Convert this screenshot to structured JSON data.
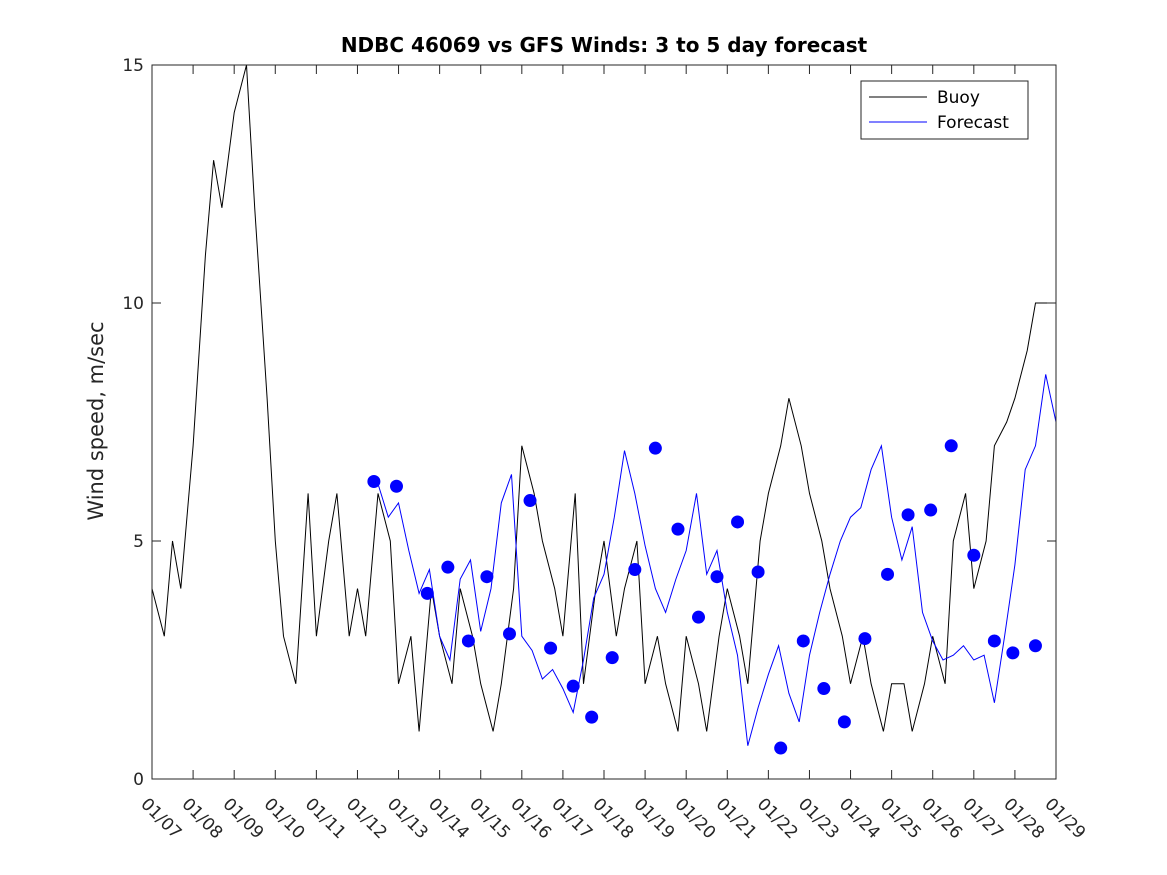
{
  "chart_data": {
    "type": "line",
    "title": "NDBC 46069 vs GFS Winds: 3 to 5 day forecast",
    "xlabel": "",
    "ylabel": "Wind speed, m/sec",
    "xlim": [
      0,
      22
    ],
    "ylim": [
      0,
      15
    ],
    "yticks": [
      0,
      5,
      10,
      15
    ],
    "ytick_labels": [
      "0",
      "5",
      "10",
      "15"
    ],
    "xtick_labels": [
      "01/07",
      "01/08",
      "01/09",
      "01/10",
      "01/11",
      "01/12",
      "01/13",
      "01/14",
      "01/15",
      "01/16",
      "01/17",
      "01/18",
      "01/19",
      "01/20",
      "01/21",
      "01/22",
      "01/23",
      "01/24",
      "01/25",
      "01/26",
      "01/27",
      "01/28",
      "01/29"
    ],
    "legend": {
      "position": "top-right",
      "entries": [
        "Buoy",
        "Forecast"
      ]
    },
    "colors": {
      "buoy": "#000000",
      "forecast": "#0000ff",
      "axis": "#262626"
    },
    "series": [
      {
        "name": "Buoy",
        "x": [
          0,
          0.3,
          0.5,
          0.7,
          1.0,
          1.3,
          1.5,
          1.7,
          2.0,
          2.3,
          2.5,
          2.8,
          3.0,
          3.2,
          3.5,
          3.8,
          4.0,
          4.3,
          4.5,
          4.8,
          5.0,
          5.2,
          5.5,
          5.8,
          6.0,
          6.3,
          6.5,
          6.8,
          7.0,
          7.3,
          7.5,
          7.8,
          8.0,
          8.3,
          8.5,
          8.8,
          9.0,
          9.3,
          9.5,
          9.8,
          10.0,
          10.3,
          10.5,
          10.8,
          11.0,
          11.3,
          11.5,
          11.8,
          12.0,
          12.3,
          12.5,
          12.8,
          13.0,
          13.3,
          13.5,
          13.8,
          14.0,
          14.3,
          14.5,
          14.8,
          15.0,
          15.3,
          15.5,
          15.8,
          16.0,
          16.3,
          16.5,
          16.8,
          17.0,
          17.3,
          17.5,
          17.8,
          18.0,
          18.3,
          18.5,
          18.8,
          19.0,
          19.3,
          19.5,
          19.8,
          20.0,
          20.3,
          20.5,
          20.8,
          21.0,
          21.3,
          21.5,
          21.8,
          22.0
        ],
        "values": [
          4,
          3,
          5,
          4,
          7,
          11,
          13,
          12,
          14,
          15,
          12,
          8,
          5,
          3,
          2,
          6,
          3,
          5,
          6,
          3,
          4,
          3,
          6,
          5,
          2,
          3,
          1,
          4,
          3,
          2,
          4,
          3,
          2,
          1,
          2,
          4,
          7,
          6,
          5,
          4,
          3,
          6,
          2,
          4,
          5,
          3,
          4,
          5,
          2,
          3,
          2,
          1,
          3,
          2,
          1,
          3,
          4,
          3,
          2,
          5,
          6,
          7,
          8,
          7,
          6,
          5,
          4,
          3,
          2,
          3,
          2,
          1,
          2,
          2,
          1,
          2,
          3,
          2,
          5,
          6,
          4,
          5,
          7,
          7.5,
          8,
          9,
          10,
          10,
          10
        ]
      },
      {
        "name": "Forecast",
        "x": [
          5.5,
          5.75,
          6.0,
          6.25,
          6.5,
          6.75,
          7.0,
          7.25,
          7.5,
          7.75,
          8.0,
          8.25,
          8.5,
          8.75,
          9.0,
          9.25,
          9.5,
          9.75,
          10.0,
          10.25,
          10.5,
          10.75,
          11.0,
          11.25,
          11.5,
          11.75,
          12.0,
          12.25,
          12.5,
          12.75,
          13.0,
          13.25,
          13.5,
          13.75,
          14.0,
          14.25,
          14.5,
          14.75,
          15.0,
          15.25,
          15.5,
          15.75,
          16.0,
          16.25,
          16.5,
          16.75,
          17.0,
          17.25,
          17.5,
          17.75,
          18.0,
          18.25,
          18.5,
          18.75,
          19.0,
          19.25,
          19.5,
          19.75,
          20.0,
          20.25,
          20.5,
          20.75,
          21.0,
          21.25,
          21.5,
          21.75,
          22.0
        ],
        "values": [
          6.2,
          5.5,
          5.8,
          4.8,
          3.9,
          4.4,
          3.0,
          2.5,
          4.2,
          4.6,
          3.1,
          4.0,
          5.8,
          6.4,
          3.0,
          2.7,
          2.1,
          2.3,
          1.9,
          1.4,
          2.5,
          3.8,
          4.3,
          5.5,
          6.9,
          6.0,
          4.9,
          4.0,
          3.5,
          4.2,
          4.8,
          6.0,
          4.3,
          4.8,
          3.5,
          2.6,
          0.7,
          1.5,
          2.2,
          2.8,
          1.8,
          1.2,
          2.6,
          3.5,
          4.3,
          5.0,
          5.5,
          5.7,
          6.5,
          7.0,
          5.5,
          4.6,
          5.3,
          3.5,
          2.9,
          2.5,
          2.6,
          2.8,
          2.5,
          2.6,
          1.6,
          3.0,
          4.5,
          6.5,
          7.0,
          8.5,
          7.5
        ]
      }
    ],
    "forecast_markers": {
      "x": [
        5.4,
        5.95,
        6.7,
        7.2,
        7.7,
        8.15,
        8.7,
        9.2,
        9.7,
        10.25,
        10.7,
        11.2,
        11.75,
        12.25,
        12.8,
        13.3,
        13.75,
        14.25,
        14.75,
        15.3,
        15.85,
        16.35,
        16.85,
        17.35,
        17.9,
        18.4,
        18.95,
        19.45,
        20.0,
        20.5,
        20.95,
        21.5
      ],
      "values": [
        6.25,
        6.15,
        3.9,
        4.45,
        2.9,
        4.25,
        3.05,
        5.85,
        2.75,
        1.95,
        1.3,
        2.55,
        4.4,
        6.95,
        5.25,
        3.4,
        4.25,
        5.4,
        4.35,
        0.65,
        2.9,
        1.9,
        1.2,
        2.95,
        4.3,
        5.55,
        5.65,
        7.0,
        4.7,
        2.9,
        2.65,
        2.8
      ]
    }
  }
}
